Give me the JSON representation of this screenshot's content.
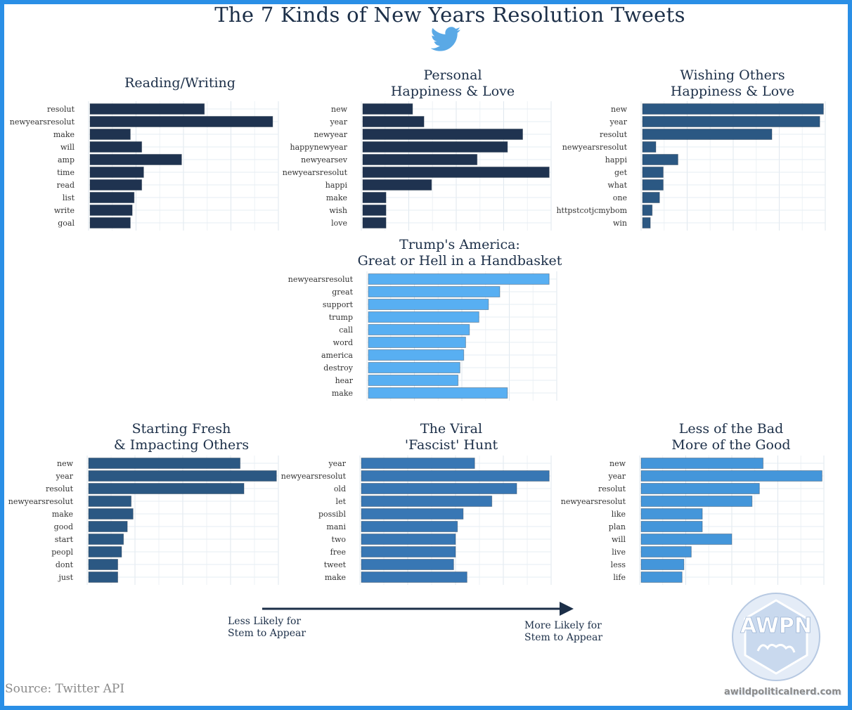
{
  "title": "The 7 Kinds of New Years Resolution Tweets",
  "source": "Source: Twitter API",
  "arrow": {
    "left_label": "Less Likely for\nStem to Appear",
    "right_label": "More Likely for\nStem to Appear"
  },
  "logo": {
    "text": "AWPN",
    "url": "awildpoliticalnerd.com"
  },
  "colors": {
    "dark_navy": "#1f3350",
    "dark_steel": "#2b5883",
    "light_blue": "#58aff2",
    "mid_blue": "#3877b4",
    "bright_blue": "#4496da",
    "title_text": "#1c2f48"
  },
  "chart_data": [
    {
      "type": "bar",
      "orientation": "horizontal",
      "title": [
        "Reading/Writing"
      ],
      "color": "#1f3350",
      "xlim": [
        0,
        1
      ],
      "categories": [
        "resolut",
        "newyearsresolut",
        "make",
        "will",
        "amp",
        "time",
        "read",
        "list",
        "write",
        "goal"
      ],
      "values": [
        0.61,
        0.97,
        0.22,
        0.28,
        0.49,
        0.29,
        0.28,
        0.24,
        0.23,
        0.22
      ]
    },
    {
      "type": "bar",
      "orientation": "horizontal",
      "title": [
        "Personal",
        "Happiness & Love"
      ],
      "color": "#1f3350",
      "xlim": [
        0,
        1
      ],
      "categories": [
        "new",
        "year",
        "newyear",
        "happynewyear",
        "newyearsev",
        "newyearsresolut",
        "happi",
        "make",
        "wish",
        "love"
      ],
      "values": [
        0.27,
        0.33,
        0.85,
        0.77,
        0.61,
        0.99,
        0.37,
        0.13,
        0.13,
        0.13
      ]
    },
    {
      "type": "bar",
      "orientation": "horizontal",
      "title": [
        "Wishing Others",
        "Happiness & Love"
      ],
      "color": "#2b5883",
      "xlim": [
        0,
        1
      ],
      "categories": [
        "new",
        "year",
        "resolut",
        "newyearsresolut",
        "happi",
        "get",
        "what",
        "one",
        "httpstcotjcmybom",
        "win"
      ],
      "values": [
        0.99,
        0.97,
        0.71,
        0.08,
        0.2,
        0.12,
        0.12,
        0.1,
        0.06,
        0.05
      ]
    },
    {
      "type": "bar",
      "orientation": "horizontal",
      "title": [
        "Trump's America:",
        "Great or Hell in a Handbasket"
      ],
      "color": "#58aff2",
      "xlim": [
        0,
        1
      ],
      "categories": [
        "newyearsresolut",
        "great",
        "support",
        "trump",
        "call",
        "word",
        "america",
        "destroy",
        "hear",
        "make"
      ],
      "values": [
        0.96,
        0.7,
        0.64,
        0.59,
        0.54,
        0.52,
        0.51,
        0.49,
        0.48,
        0.74
      ]
    },
    {
      "type": "bar",
      "orientation": "horizontal",
      "title": [
        "Starting Fresh",
        "& Impacting Others"
      ],
      "color": "#2b5883",
      "xlim": [
        0,
        1
      ],
      "categories": [
        "new",
        "year",
        "resolut",
        "newyearsresolut",
        "make",
        "good",
        "start",
        "peopl",
        "dont",
        "just"
      ],
      "values": [
        0.8,
        0.99,
        0.82,
        0.23,
        0.24,
        0.21,
        0.19,
        0.18,
        0.16,
        0.16
      ]
    },
    {
      "type": "bar",
      "orientation": "horizontal",
      "title": [
        "The Viral",
        "'Fascist' Hunt"
      ],
      "color": "#3877b4",
      "xlim": [
        0,
        1
      ],
      "categories": [
        "year",
        "newyearsresolut",
        "old",
        "let",
        "possibl",
        "mani",
        "two",
        "free",
        "tweet",
        "make"
      ],
      "values": [
        0.6,
        0.99,
        0.82,
        0.69,
        0.54,
        0.51,
        0.5,
        0.5,
        0.49,
        0.56
      ]
    },
    {
      "type": "bar",
      "orientation": "horizontal",
      "title": [
        "Less of the Bad",
        "More of the Good"
      ],
      "color": "#4496da",
      "xlim": [
        0,
        1
      ],
      "categories": [
        "new",
        "year",
        "resolut",
        "newyearsresolut",
        "like",
        "plan",
        "will",
        "live",
        "less",
        "life"
      ],
      "values": [
        0.67,
        0.99,
        0.65,
        0.61,
        0.34,
        0.34,
        0.5,
        0.28,
        0.24,
        0.23
      ]
    }
  ]
}
